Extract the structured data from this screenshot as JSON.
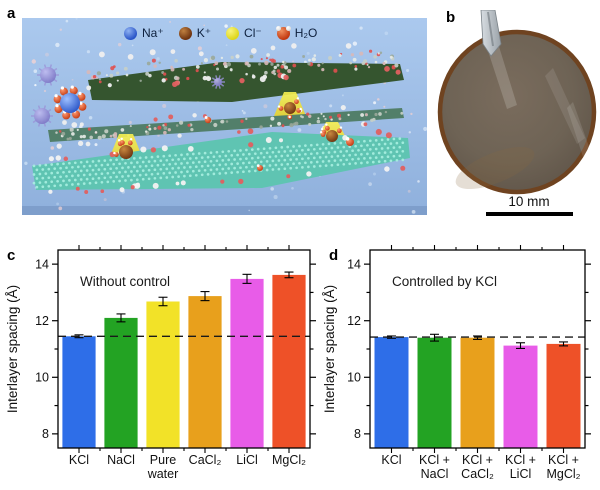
{
  "figure": {
    "panels": [
      {
        "id": "a",
        "label": "a"
      },
      {
        "id": "b",
        "label": "b"
      },
      {
        "id": "c",
        "label": "c"
      },
      {
        "id": "d",
        "label": "d"
      }
    ]
  },
  "panel_a": {
    "legend": [
      {
        "symbol": "na-ion",
        "label": "Na⁺",
        "color": "#2a55c8",
        "highlight": "#8fb2f2"
      },
      {
        "symbol": "k-ion",
        "label": "K⁺",
        "color": "#6e3310",
        "highlight": "#c08040"
      },
      {
        "symbol": "cl-ion",
        "label": "Cl⁻",
        "color": "#ded61a",
        "highlight": "#f8f47e"
      },
      {
        "symbol": "water-molecule",
        "label": "H₂O",
        "color": "#c23810",
        "highlight": "#f09060"
      }
    ]
  },
  "panel_b": {
    "scale_bar_label": "10 mm"
  },
  "chart_data": [
    {
      "id": "c",
      "type": "bar",
      "title": "Without control",
      "xlabel": "",
      "ylabel": "Interlayer spacing (Å)",
      "ylim": [
        7.5,
        14.5
      ],
      "yticks": [
        8,
        10,
        12,
        14
      ],
      "grid": false,
      "legend_position": "none",
      "categories": [
        [
          "KCl"
        ],
        [
          "NaCl"
        ],
        [
          "Pure",
          "water"
        ],
        [
          "CaCl₂"
        ],
        [
          "LiCl"
        ],
        [
          "MgCl₂"
        ]
      ],
      "values": [
        11.45,
        12.1,
        12.68,
        12.87,
        13.48,
        13.62
      ],
      "errors": [
        0.05,
        0.14,
        0.15,
        0.16,
        0.16,
        0.1
      ],
      "colors": [
        "#2e6ee8",
        "#23a323",
        "#f2e228",
        "#e8a01c",
        "#e85ce8",
        "#ee5128"
      ],
      "reference_line": 11.45
    },
    {
      "id": "d",
      "type": "bar",
      "title": "Controlled by KCl",
      "xlabel": "",
      "ylabel": "Interlayer spacing (Å)",
      "ylim": [
        7.5,
        14.5
      ],
      "yticks": [
        8,
        10,
        12,
        14
      ],
      "grid": false,
      "legend_position": "none",
      "categories": [
        [
          "KCl"
        ],
        [
          "KCl +",
          "NaCl"
        ],
        [
          "KCl +",
          "CaCl₂"
        ],
        [
          "KCl +",
          "LiCl"
        ],
        [
          "KCl +",
          "MgCl₂"
        ]
      ],
      "values": [
        11.42,
        11.4,
        11.4,
        11.12,
        11.18
      ],
      "errors": [
        0.04,
        0.12,
        0.06,
        0.1,
        0.07
      ],
      "colors": [
        "#2e6ee8",
        "#23a323",
        "#e8a01c",
        "#e85ce8",
        "#ee5128"
      ],
      "reference_line": 11.42
    }
  ]
}
